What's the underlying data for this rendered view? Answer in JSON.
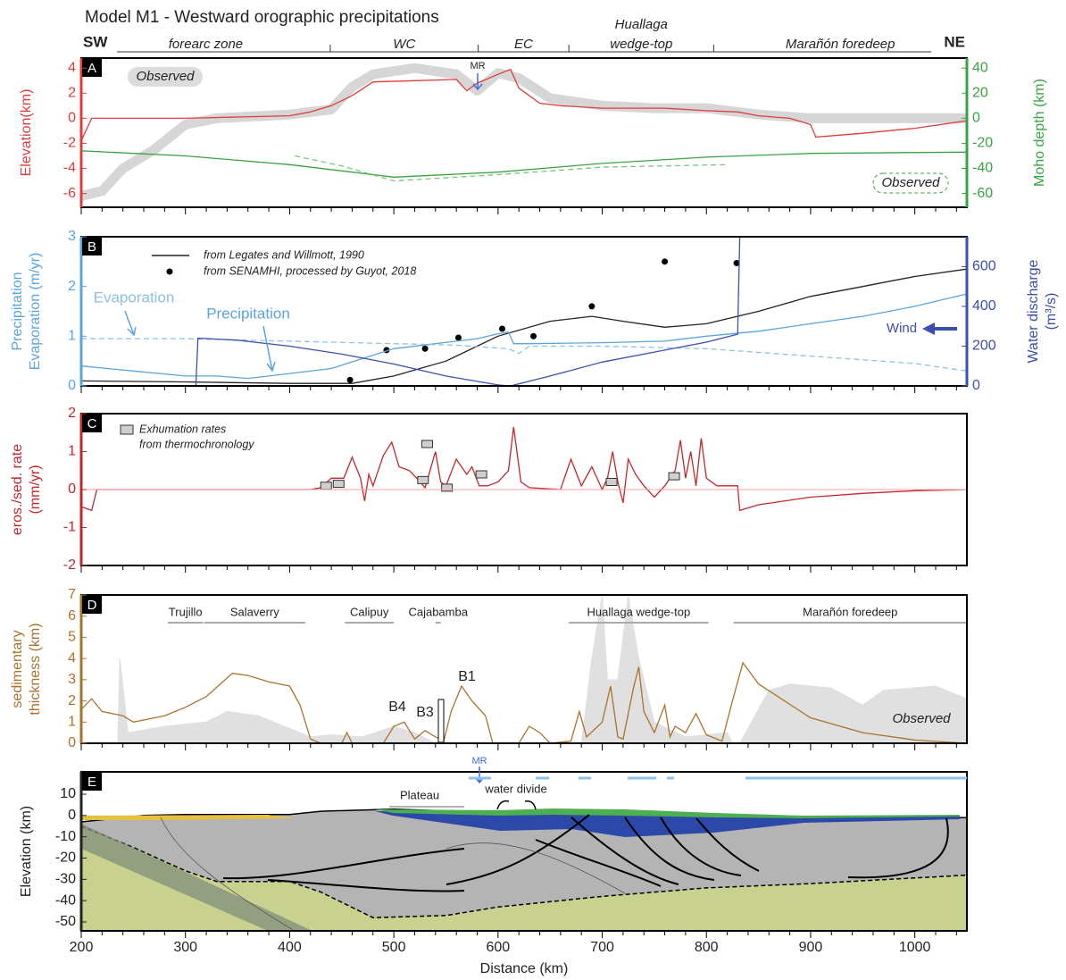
{
  "header": {
    "title": "Model M1 - Westward orographic precipitations",
    "sw": "SW",
    "ne": "NE",
    "zones": [
      [
        "forearc zone"
      ],
      [
        "WC"
      ],
      [
        "EC"
      ],
      [
        "Huallaga",
        "wedge-top"
      ],
      [
        "Marañón foredeep"
      ]
    ],
    "zone_bounds": [
      439,
      581,
      668,
      807
    ]
  },
  "chart_data": [
    {
      "type": "line",
      "panel": "A",
      "xlim": [
        200,
        1050
      ],
      "ylim": [
        -7.1,
        4.8
      ],
      "yticks": [
        -6,
        -4,
        -2,
        0,
        2,
        4
      ],
      "y2lim": [
        -71,
        48
      ],
      "y2ticks": [
        -60,
        -40,
        -20,
        0,
        20,
        40
      ],
      "ylabel": [
        "Elevation(km)"
      ],
      "y2label": [
        "Moho depth (km)"
      ],
      "axis_color": "#e03c3c",
      "y2_color": "#3aa341",
      "annotations": [
        "MR"
      ],
      "series": [
        {
          "name": "Observed",
          "style": "band",
          "color": "#c8c8c8",
          "x": [
            200,
            220,
            240,
            270,
            300,
            330,
            400,
            440,
            460,
            480,
            520,
            560,
            580,
            600,
            620,
            650,
            700,
            750,
            800,
            850,
            900,
            1050
          ],
          "values": [
            -6.2,
            -5.8,
            -4,
            -2.5,
            -0.5,
            0,
            0.3,
            0.7,
            2.5,
            3.5,
            4.0,
            3.5,
            2.2,
            3.6,
            3.2,
            1.6,
            1.0,
            0.8,
            0.8,
            0.3,
            0,
            0
          ]
        },
        {
          "style": "line",
          "color": "#e03c3c",
          "x": [
            200,
            210,
            250,
            300,
            350,
            400,
            420,
            440,
            460,
            480,
            520,
            560,
            570,
            580,
            600,
            612,
            620,
            640,
            660,
            700,
            720,
            760,
            800,
            830,
            850,
            880,
            900,
            905,
            950,
            1000,
            1050
          ],
          "values": [
            -1.8,
            0,
            0,
            0,
            0.1,
            0.2,
            0.5,
            1.0,
            1.8,
            2.9,
            3.0,
            3.1,
            2.2,
            2.8,
            3.5,
            3.9,
            2.4,
            1.2,
            1.0,
            0.8,
            0.8,
            0.8,
            0.6,
            0.5,
            0.2,
            0.0,
            -0.5,
            -1.5,
            -1.2,
            -0.8,
            -0.2
          ]
        },
        {
          "style": "line",
          "axis": "y2",
          "color": "#3aa341",
          "x": [
            200,
            300,
            400,
            500,
            600,
            700,
            800,
            900,
            1050
          ],
          "values": [
            -26,
            -30,
            -37,
            -47,
            -43,
            -36,
            -31,
            -28,
            -27
          ]
        },
        {
          "name": "Observed",
          "style": "dashed",
          "axis": "y2",
          "color": "#7cc47f",
          "x": [
            405,
            450,
            500,
            600,
            700,
            820
          ],
          "values": [
            -30,
            -38,
            -50,
            -45,
            -39,
            -37
          ]
        }
      ]
    },
    {
      "type": "line",
      "panel": "B",
      "xlim": [
        200,
        1050
      ],
      "ylim": [
        0,
        3
      ],
      "yticks": [
        0,
        1,
        2,
        3
      ],
      "y2lim": [
        0,
        750
      ],
      "y2ticks": [
        0,
        200,
        400,
        600
      ],
      "ylabel": [
        "Precipitation",
        "Evaporation (m/yr)"
      ],
      "y2label": [
        "Water discharge",
        "(m³/s)"
      ],
      "axis_color": "#5aa5dc",
      "y2_color": "#3b4fae",
      "annotations": [
        "Wind"
      ],
      "series": [
        {
          "name": "from Legates and Willmott, 1990",
          "style": "line",
          "color": "#222222",
          "x": [
            200,
            300,
            400,
            460,
            500,
            550,
            600,
            650,
            690,
            720,
            760,
            800,
            850,
            900,
            950,
            1000,
            1050
          ],
          "values": [
            0.1,
            0.08,
            0.05,
            0.05,
            0.2,
            0.5,
            1.0,
            1.3,
            1.4,
            1.3,
            1.18,
            1.25,
            1.5,
            1.8,
            2.0,
            2.2,
            2.35
          ]
        },
        {
          "name": "from SENAMHI, processed by Guyot, 2018",
          "style": "dots",
          "color": "#000000",
          "x": [
            458,
            493,
            530,
            562,
            604,
            634,
            690,
            760,
            829
          ],
          "values": [
            0.12,
            0.72,
            0.75,
            0.97,
            1.15,
            1.0,
            1.6,
            2.5,
            2.47
          ]
        },
        {
          "name": "Precipitation",
          "style": "line",
          "color": "#5aa5dc",
          "x": [
            200,
            250,
            300,
            330,
            360,
            400,
            440,
            470,
            500,
            540,
            580,
            600,
            610,
            615,
            630,
            700,
            760,
            800,
            850,
            900,
            950,
            1000,
            1050
          ],
          "values": [
            0.4,
            0.3,
            0.2,
            0.2,
            0.15,
            0.25,
            0.35,
            0.55,
            0.75,
            0.85,
            0.95,
            1.05,
            1.08,
            0.85,
            0.85,
            0.87,
            0.9,
            1.0,
            1.1,
            1.25,
            1.4,
            1.6,
            1.85
          ]
        },
        {
          "name": "Evaporation",
          "style": "dashed",
          "color": "#8ec0e8",
          "x": [
            200,
            300,
            400,
            500,
            560,
            610,
            620,
            630,
            700,
            800,
            900,
            1000,
            1050
          ],
          "values": [
            0.95,
            0.95,
            0.9,
            0.85,
            0.82,
            0.75,
            0.65,
            0.8,
            0.8,
            0.75,
            0.6,
            0.45,
            0.3
          ]
        },
        {
          "style": "line",
          "axis": "y2",
          "color": "#3b4fae",
          "x": [
            200,
            310,
            312,
            350,
            400,
            450,
            500,
            550,
            600,
            612,
            650,
            700,
            750,
            800,
            830,
            832
          ],
          "values": [
            0,
            0,
            240,
            230,
            200,
            160,
            110,
            50,
            5,
            0,
            50,
            120,
            170,
            220,
            260,
            750
          ]
        }
      ]
    },
    {
      "type": "line",
      "panel": "C",
      "xlim": [
        200,
        1050
      ],
      "ylim": [
        -2,
        2
      ],
      "yticks": [
        -2,
        -1,
        0,
        1,
        2
      ],
      "ylabel": [
        "eros./sed. rate",
        "(mm/yr)"
      ],
      "axis_color": "#c0282d",
      "zero_line": true,
      "series": [
        {
          "style": "line",
          "color": "#c0282d",
          "x": [
            200,
            210,
            215,
            420,
            430,
            440,
            452,
            460,
            468,
            472,
            476,
            480,
            490,
            498,
            505,
            515,
            522,
            530,
            540,
            545,
            550,
            560,
            570,
            575,
            582,
            590,
            600,
            610,
            615,
            622,
            630,
            660,
            670,
            680,
            690,
            700,
            705,
            710,
            715,
            720,
            725,
            732,
            740,
            750,
            760,
            765,
            770,
            775,
            780,
            785,
            790,
            795,
            800,
            810,
            830,
            832,
            850,
            900,
            950,
            1000,
            1050
          ],
          "values": [
            -0.45,
            -0.55,
            0,
            0,
            0.05,
            0.3,
            0.3,
            0.85,
            0.3,
            -0.3,
            0.4,
            0.1,
            0.9,
            1.25,
            0.6,
            0.5,
            0.3,
            0.05,
            1.0,
            0.2,
            0.1,
            0.8,
            0.4,
            0.6,
            0.1,
            0.1,
            0.2,
            0.5,
            1.65,
            0.2,
            0.05,
            0,
            0.8,
            0.1,
            0.6,
            0.0,
            0.3,
            1.0,
            0.2,
            -0.35,
            0.8,
            0.4,
            0.1,
            -0.2,
            0.1,
            0.3,
            0.5,
            1.3,
            0.3,
            1.0,
            0.1,
            1.35,
            0.3,
            0.1,
            0.1,
            -0.55,
            -0.4,
            -0.2,
            -0.1,
            -0.03,
            0
          ]
        },
        {
          "name": [
            "Exhumation rates",
            "from thermochronology"
          ],
          "style": "boxes",
          "color": "#cfcfcf",
          "x": [
            435,
            447,
            532,
            528,
            551,
            584,
            709,
            769
          ],
          "values": [
            0.1,
            0.15,
            1.2,
            0.25,
            0.05,
            0.4,
            0.2,
            0.35
          ]
        }
      ]
    },
    {
      "type": "line",
      "panel": "D",
      "xlim": [
        200,
        1050
      ],
      "ylim": [
        0,
        7
      ],
      "yticks": [
        0,
        1,
        2,
        3,
        4,
        5,
        6,
        7
      ],
      "ylabel": [
        "sedimentary",
        "thickness (km)"
      ],
      "axis_color": "#a8732e",
      "annotations": [
        "B4",
        "B3",
        "B1"
      ],
      "regions": [
        {
          "label": "Trujillo",
          "start": 283,
          "end": 317
        },
        {
          "label": "Salaverry",
          "start": 318,
          "end": 415
        },
        {
          "label": "Calipuy",
          "start": 453,
          "end": 500
        },
        {
          "label": "Cajabamba",
          "start": 540,
          "end": 545
        },
        {
          "label": "Huallaga wedge-top",
          "start": 668,
          "end": 802
        },
        {
          "label": "Marañón foredeep",
          "start": 826,
          "end": 1050
        }
      ],
      "series": [
        {
          "name": "Observed",
          "style": "area",
          "color": "#e0e0e0",
          "x": [
            235,
            237,
            245,
            280,
            320,
            340,
            370,
            420,
            440,
            470,
            500,
            520,
            540,
            680,
            690,
            700,
            705,
            715,
            725,
            735,
            750,
            780,
            820,
            825,
            832,
            860,
            880,
            920,
            950,
            970,
            1020,
            1050
          ],
          "values": [
            0,
            4.0,
            0.5,
            0.8,
            1.0,
            1.5,
            1.3,
            0.3,
            0.4,
            0.3,
            0.8,
            0.5,
            0,
            0,
            4,
            7,
            3,
            3,
            7,
            4,
            1,
            0.3,
            0.5,
            0,
            0,
            2.5,
            2.8,
            2.6,
            1.8,
            2.5,
            2.7,
            2.1
          ]
        },
        {
          "style": "line",
          "color": "#a8732e",
          "x": [
            200,
            210,
            220,
            240,
            250,
            280,
            300,
            320,
            345,
            360,
            380,
            400,
            410,
            420,
            430,
            450,
            455,
            460,
            490,
            500,
            510,
            520,
            530,
            540,
            548,
            555,
            565,
            575,
            588,
            595,
            620,
            630,
            640,
            650,
            670,
            678,
            685,
            700,
            708,
            715,
            720,
            730,
            735,
            740,
            750,
            760,
            765,
            770,
            780,
            790,
            800,
            815,
            825,
            835,
            850,
            900,
            950,
            1000,
            1050
          ],
          "values": [
            1.6,
            2.1,
            1.5,
            1.3,
            1.0,
            1.3,
            1.7,
            2.2,
            3.3,
            3.2,
            2.9,
            2.7,
            1.8,
            0.2,
            0,
            0,
            0.5,
            0,
            0,
            0.8,
            1.0,
            0.2,
            0.6,
            0.3,
            0.1,
            1.5,
            2.7,
            2.0,
            1.3,
            0.0,
            0.0,
            0.8,
            0.5,
            0.0,
            0.1,
            1.5,
            0.3,
            1.0,
            2.7,
            0.3,
            0.2,
            2.6,
            3.6,
            1.5,
            0.5,
            1.8,
            0.3,
            0.8,
            0.5,
            1.4,
            0.4,
            0.1,
            2.0,
            3.8,
            2.8,
            1.2,
            0.5,
            0.15,
            0.0
          ]
        }
      ]
    },
    {
      "type": "line",
      "panel": "E",
      "xlim": [
        200,
        1050
      ],
      "ylim": [
        -54.2,
        20.5
      ],
      "yticks": [
        -50,
        -40,
        -30,
        -20,
        -10,
        0,
        10
      ],
      "xticks": [
        200,
        300,
        400,
        500,
        600,
        700,
        800,
        900,
        1000
      ],
      "xminor": [
        220,
        240,
        260,
        280,
        320,
        340,
        360,
        380,
        420,
        440,
        460,
        480,
        520,
        540,
        560,
        580,
        620,
        640,
        660,
        680,
        720,
        740,
        760,
        780,
        820,
        840,
        860,
        880,
        920,
        940,
        960,
        980,
        1020,
        1040
      ],
      "xlabel": "Distance (km)",
      "ylabel": [
        "Elevation (km)"
      ],
      "axis_color": "#222222",
      "annotations": [
        "Plateau",
        "water divide",
        "MR"
      ],
      "series": [
        {
          "style": "fill",
          "color": "#b4b4b4",
          "x": [
            200,
            260,
            300,
            400,
            430,
            500,
            560,
            600,
            660,
            700,
            800,
            900,
            1050
          ],
          "values": [
            -3,
            0,
            0.5,
            0.5,
            2,
            3,
            2,
            1,
            1,
            0.5,
            -0.5,
            -1,
            -1
          ]
        },
        {
          "style": "fill",
          "color": "#c9d18f",
          "dashed": true,
          "x": [
            200,
            250,
            300,
            330,
            400,
            430,
            480,
            550,
            600,
            700,
            800,
            900,
            1050
          ],
          "values": [
            -5,
            -15,
            -26,
            -31,
            -31,
            -36,
            -48,
            -47,
            -43,
            -38,
            -34,
            -32,
            -28
          ]
        }
      ]
    }
  ]
}
